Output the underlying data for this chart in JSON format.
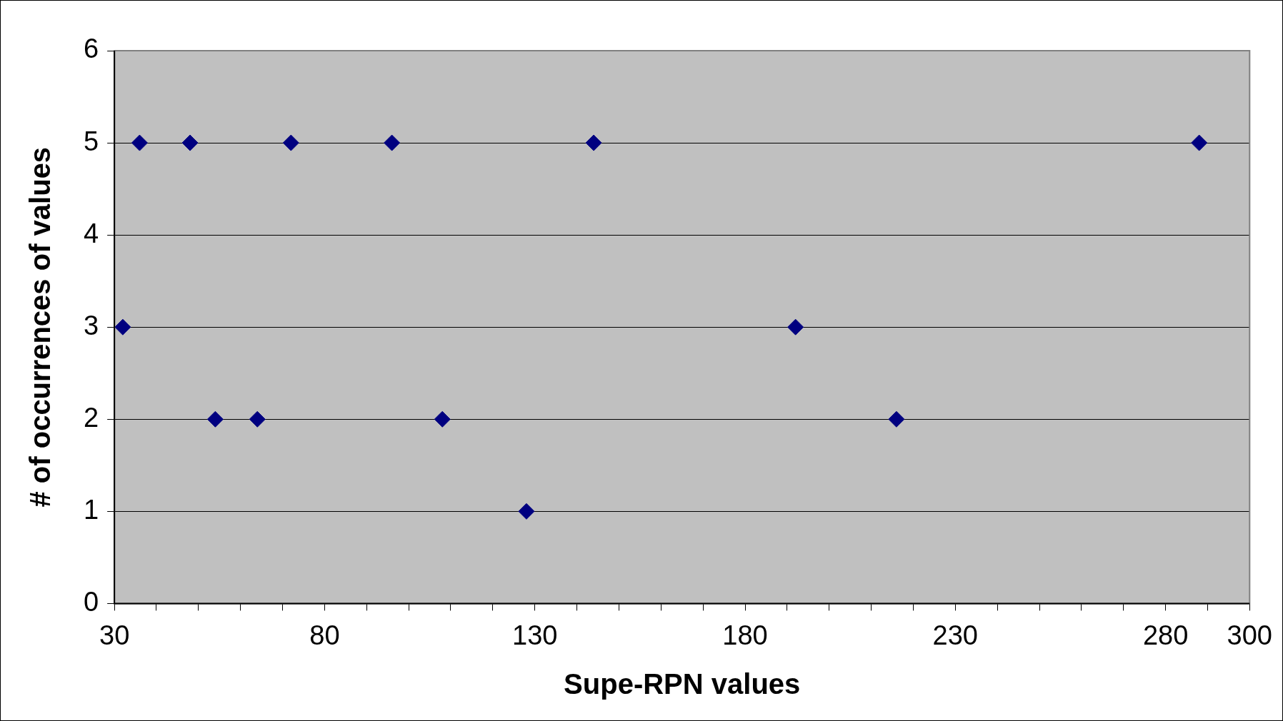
{
  "chart_data": {
    "type": "scatter",
    "xlabel": "Supe-RPN values",
    "ylabel": "# of occurrences of values",
    "x": [
      32,
      36,
      48,
      54,
      64,
      72,
      96,
      108,
      128,
      144,
      192,
      216,
      288
    ],
    "values": [
      3,
      5,
      5,
      2,
      2,
      5,
      5,
      2,
      1,
      5,
      3,
      2,
      5
    ],
    "color": "#000080",
    "marker": "diamond",
    "grid": "y",
    "legend": false,
    "xlim": [
      30,
      300
    ],
    "xticks": [
      30,
      {
        "value": 40,
        "label": null
      },
      {
        "value": 50,
        "label": null
      },
      {
        "value": 60,
        "label": null
      },
      {
        "value": 70,
        "label": null
      },
      80,
      {
        "value": 90,
        "label": null
      },
      {
        "value": 100,
        "label": null
      },
      {
        "value": 110,
        "label": null
      },
      {
        "value": 120,
        "label": null
      },
      130,
      {
        "value": 140,
        "label": null
      },
      {
        "value": 150,
        "label": null
      },
      {
        "value": 160,
        "label": null
      },
      {
        "value": 170,
        "label": null
      },
      180,
      {
        "value": 190,
        "label": null
      },
      {
        "value": 200,
        "label": null
      },
      {
        "value": 210,
        "label": null
      },
      {
        "value": 220,
        "label": null
      },
      230,
      {
        "value": 240,
        "label": null
      },
      {
        "value": 250,
        "label": null
      },
      {
        "value": 260,
        "label": null
      },
      {
        "value": 270,
        "label": null
      },
      280,
      {
        "value": 290,
        "label": null
      },
      300
    ],
    "ylim": [
      0,
      6
    ],
    "yticks": [
      0,
      1,
      2,
      3,
      4,
      5,
      6
    ]
  }
}
